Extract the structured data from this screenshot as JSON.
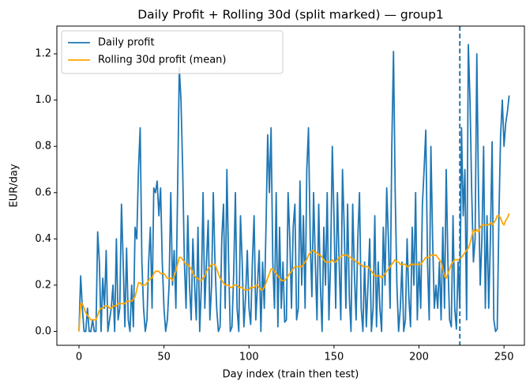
{
  "chart_data": {
    "type": "line",
    "title": "Daily Profit + Rolling 30d (split marked) — group1",
    "xlabel": "Day index (train then test)",
    "ylabel": "EUR/day",
    "legend": "upper left",
    "grid": false,
    "xlim": [
      -13,
      262
    ],
    "ylim": [
      -0.06,
      1.32
    ],
    "xticks": [
      0,
      50,
      100,
      150,
      200,
      250
    ],
    "yticks": [
      {
        "value": 0,
        "label": "0.0"
      },
      0.2,
      0.4,
      0.6,
      0.8,
      {
        "value": 1,
        "label": "1.0"
      },
      1.2
    ],
    "vline_x": 224,
    "vline_color": "#1f77b4",
    "x": [
      0,
      1,
      2,
      3,
      4,
      5,
      6,
      7,
      8,
      9,
      10,
      11,
      12,
      13,
      14,
      15,
      16,
      17,
      18,
      19,
      20,
      21,
      22,
      23,
      24,
      25,
      26,
      27,
      28,
      29,
      30,
      31,
      32,
      33,
      34,
      35,
      36,
      37,
      38,
      39,
      40,
      41,
      42,
      43,
      44,
      45,
      46,
      47,
      48,
      49,
      50,
      51,
      52,
      53,
      54,
      55,
      56,
      57,
      58,
      59,
      60,
      61,
      62,
      63,
      64,
      65,
      66,
      67,
      68,
      69,
      70,
      71,
      72,
      73,
      74,
      75,
      76,
      77,
      78,
      79,
      80,
      81,
      82,
      83,
      84,
      85,
      86,
      87,
      88,
      89,
      90,
      91,
      92,
      93,
      94,
      95,
      96,
      97,
      98,
      99,
      100,
      101,
      102,
      103,
      104,
      105,
      106,
      107,
      108,
      109,
      110,
      111,
      112,
      113,
      114,
      115,
      116,
      117,
      118,
      119,
      120,
      121,
      122,
      123,
      124,
      125,
      126,
      127,
      128,
      129,
      130,
      131,
      132,
      133,
      134,
      135,
      136,
      137,
      138,
      139,
      140,
      141,
      142,
      143,
      144,
      145,
      146,
      147,
      148,
      149,
      150,
      151,
      152,
      153,
      154,
      155,
      156,
      157,
      158,
      159,
      160,
      161,
      162,
      163,
      164,
      165,
      166,
      167,
      168,
      169,
      170,
      171,
      172,
      173,
      174,
      175,
      176,
      177,
      178,
      179,
      180,
      181,
      182,
      183,
      184,
      185,
      186,
      187,
      188,
      189,
      190,
      191,
      192,
      193,
      194,
      195,
      196,
      197,
      198,
      199,
      200,
      201,
      202,
      203,
      204,
      205,
      206,
      207,
      208,
      209,
      210,
      211,
      212,
      213,
      214,
      215,
      216,
      217,
      218,
      219,
      220,
      221,
      222,
      223,
      224,
      225,
      226,
      227,
      228,
      229,
      230,
      231,
      232,
      233,
      234,
      235,
      236,
      237,
      238,
      239,
      240,
      241,
      242,
      243,
      244,
      245,
      246,
      247,
      248,
      249,
      250,
      251,
      252,
      253
    ],
    "series": [
      {
        "name": "Daily profit",
        "color": "#1f77b4",
        "values": [
          0,
          0.24,
          0.1,
          0,
          0,
          0.1,
          0,
          0,
          0.05,
          0,
          0,
          0.43,
          0.3,
          0,
          0.23,
          0.1,
          0.35,
          0,
          0.05,
          0.1,
          0.2,
          0,
          0.4,
          0.05,
          0.1,
          0.55,
          0.3,
          0.02,
          0.36,
          0.05,
          0,
          0.2,
          0.02,
          0.45,
          0.4,
          0.7,
          0.88,
          0.3,
          0.1,
          0,
          0.05,
          0.3,
          0.45,
          0.1,
          0.62,
          0.6,
          0.65,
          0.5,
          0.62,
          0.3,
          0.1,
          0,
          0.05,
          0.2,
          0.6,
          0.2,
          0.35,
          0.1,
          0.6,
          1.14,
          1.0,
          0.7,
          0.3,
          0.1,
          0.5,
          0.2,
          0.05,
          0.4,
          0.2,
          0.05,
          0.45,
          0,
          0.2,
          0.6,
          0.1,
          0.3,
          0.48,
          0.05,
          0.2,
          0.6,
          0.3,
          0.1,
          0,
          0.02,
          0.4,
          0.55,
          0.1,
          0.7,
          0.3,
          0,
          0.02,
          0.25,
          0.6,
          0.1,
          0,
          0.5,
          0.3,
          0.02,
          0.15,
          0.35,
          0.1,
          0.03,
          0.3,
          0.5,
          0.05,
          0.2,
          0.35,
          0,
          0.3,
          0.1,
          0.45,
          0.85,
          0.6,
          0.88,
          0.3,
          0.1,
          0.6,
          0.02,
          0.45,
          0.1,
          0.3,
          0.04,
          0.05,
          0.6,
          0.4,
          0.1,
          0.45,
          0.55,
          0.05,
          0.1,
          0.65,
          0.2,
          0.5,
          0.1,
          0.7,
          0.88,
          0.4,
          0.15,
          0.6,
          0.3,
          0.05,
          0.55,
          0.2,
          0,
          0.45,
          0.2,
          0.6,
          0.05,
          0.3,
          0.8,
          0.5,
          0.1,
          0.6,
          0.3,
          0.05,
          0.7,
          0.45,
          0.1,
          0.55,
          0.15,
          0,
          0.55,
          0.25,
          0.05,
          0.4,
          0.6,
          0.1,
          0,
          0.3,
          0.02,
          0.2,
          0.4,
          0,
          0.1,
          0.5,
          0.02,
          0.3,
          0.1,
          0,
          0.45,
          0.2,
          0.62,
          0.4,
          0.1,
          0.8,
          1.21,
          0.6,
          0.2,
          0,
          0.1,
          0.3,
          0,
          0.05,
          0.4,
          0.15,
          0.02,
          0.45,
          0.2,
          0.6,
          0.05,
          0.3,
          0.1,
          0.55,
          0.7,
          0.87,
          0.3,
          0.05,
          0.8,
          0.4,
          0.1,
          0.2,
          0.1,
          0.3,
          0.05,
          0.45,
          0.1,
          0.7,
          0.3,
          0.05,
          0.02,
          0.5,
          0.1,
          0.01,
          0.3,
          0.1,
          0.88,
          0.5,
          0.7,
          0.05,
          1.24,
          1.0,
          0.6,
          0.3,
          0.4,
          1.2,
          0.6,
          0.2,
          0.4,
          0.8,
          0.1,
          0.5,
          0.1,
          0.4,
          0.82,
          0.05,
          0,
          0.01,
          0.5,
          0.85,
          1.0,
          0.8,
          0.9,
          0.95,
          1.02
        ]
      },
      {
        "name": "Rolling 30d profit (mean)",
        "color": "#ffa500",
        "values": [
          0,
          0.12,
          0.12,
          0.1,
          0.08,
          0.07,
          0.06,
          0.05,
          0.05,
          0.05,
          0.05,
          0.07,
          0.09,
          0.1,
          0.1,
          0.11,
          0.11,
          0.11,
          0.1,
          0.1,
          0.11,
          0.11,
          0.11,
          0.12,
          0.12,
          0.12,
          0.12,
          0.12,
          0.13,
          0.13,
          0.13,
          0.13,
          0.14,
          0.15,
          0.18,
          0.21,
          0.21,
          0.2,
          0.2,
          0.2,
          0.21,
          0.22,
          0.23,
          0.23,
          0.25,
          0.26,
          0.26,
          0.26,
          0.25,
          0.25,
          0.25,
          0.24,
          0.23,
          0.23,
          0.23,
          0.22,
          0.24,
          0.26,
          0.29,
          0.32,
          0.32,
          0.31,
          0.3,
          0.29,
          0.29,
          0.28,
          0.27,
          0.25,
          0.24,
          0.23,
          0.23,
          0.22,
          0.22,
          0.23,
          0.24,
          0.26,
          0.27,
          0.28,
          0.29,
          0.29,
          0.29,
          0.27,
          0.25,
          0.23,
          0.22,
          0.21,
          0.2,
          0.2,
          0.2,
          0.19,
          0.19,
          0.2,
          0.2,
          0.2,
          0.19,
          0.19,
          0.19,
          0.18,
          0.18,
          0.18,
          0.18,
          0.19,
          0.19,
          0.19,
          0.2,
          0.2,
          0.19,
          0.18,
          0.18,
          0.19,
          0.21,
          0.23,
          0.25,
          0.27,
          0.27,
          0.26,
          0.25,
          0.24,
          0.23,
          0.22,
          0.22,
          0.22,
          0.23,
          0.24,
          0.25,
          0.26,
          0.27,
          0.28,
          0.28,
          0.28,
          0.28,
          0.28,
          0.29,
          0.3,
          0.31,
          0.33,
          0.34,
          0.35,
          0.35,
          0.34,
          0.34,
          0.33,
          0.33,
          0.32,
          0.31,
          0.3,
          0.3,
          0.3,
          0.3,
          0.31,
          0.3,
          0.3,
          0.31,
          0.32,
          0.32,
          0.33,
          0.33,
          0.33,
          0.33,
          0.32,
          0.32,
          0.31,
          0.31,
          0.3,
          0.3,
          0.29,
          0.29,
          0.28,
          0.28,
          0.28,
          0.28,
          0.27,
          0.26,
          0.25,
          0.24,
          0.24,
          0.24,
          0.24,
          0.23,
          0.24,
          0.25,
          0.26,
          0.27,
          0.28,
          0.29,
          0.3,
          0.31,
          0.3,
          0.3,
          0.29,
          0.29,
          0.29,
          0.29,
          0.28,
          0.28,
          0.29,
          0.29,
          0.29,
          0.29,
          0.29,
          0.29,
          0.29,
          0.3,
          0.31,
          0.32,
          0.32,
          0.32,
          0.33,
          0.33,
          0.33,
          0.33,
          0.32,
          0.31,
          0.3,
          0.27,
          0.24,
          0.23,
          0.25,
          0.27,
          0.29,
          0.3,
          0.31,
          0.31,
          0.31,
          0.31,
          0.32,
          0.33,
          0.34,
          0.35,
          0.36,
          0.38,
          0.41,
          0.44,
          0.43,
          0.44,
          0.43,
          0.45,
          0.46,
          0.46,
          0.46,
          0.46,
          0.46,
          0.47,
          0.46,
          0.47,
          0.48,
          0.5,
          0.5,
          0.49,
          0.47,
          0.46,
          0.48,
          0.49,
          0.51
        ]
      }
    ]
  }
}
